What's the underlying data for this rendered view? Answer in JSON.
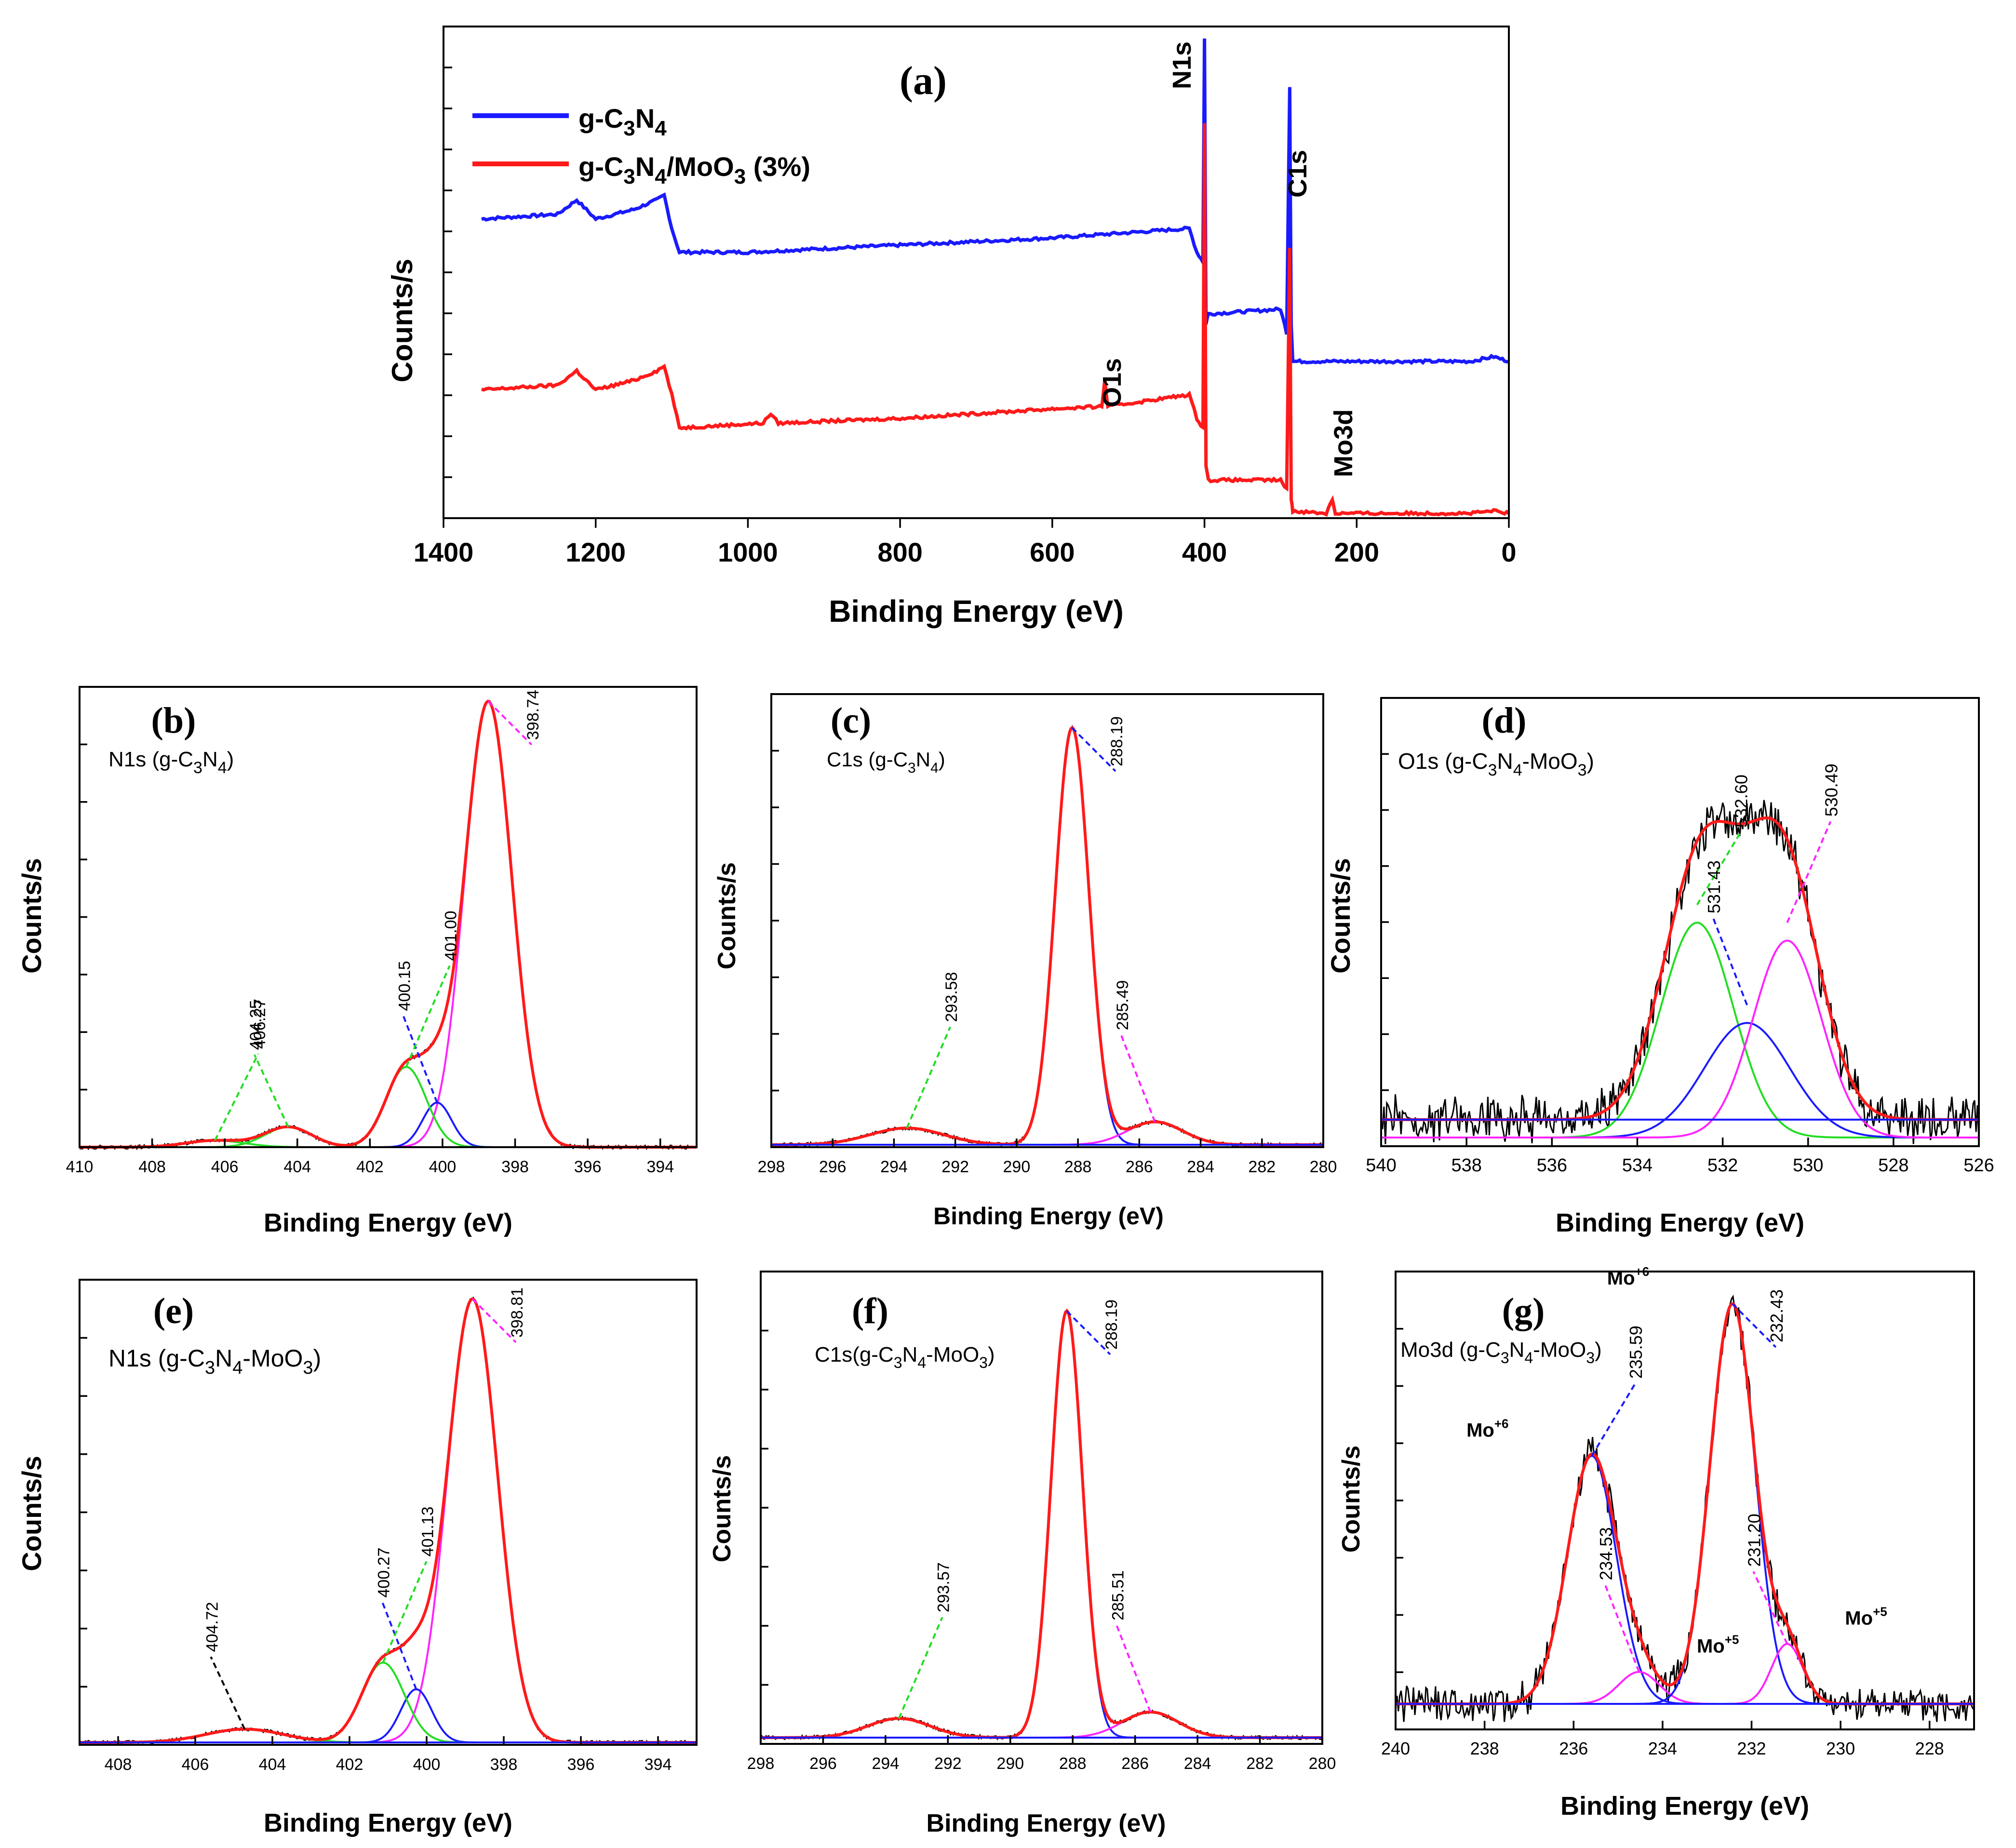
{
  "figure_description_panels": [
    "a",
    "b",
    "c",
    "d",
    "e",
    "f",
    "g"
  ],
  "colors": {
    "blue": "#1a1aff",
    "red": "#ff1a1a",
    "green": "#22dd22",
    "magenta": "#ff22ff",
    "black": "#000000"
  },
  "chart_data": [
    {
      "id": "a",
      "type": "line",
      "panel_label": "(a)",
      "xlabel": "Binding Energy (eV)",
      "ylabel": "Counts/s",
      "xlim": [
        1400,
        0
      ],
      "x_ticks": [
        1400,
        1200,
        1000,
        800,
        600,
        400,
        200,
        0
      ],
      "legend": [
        "g-C3N4",
        "g-C3N4/MoO3 (3%)"
      ],
      "series": [
        {
          "name": "g-C3N4",
          "color": "blue",
          "points": [
            [
              1350,
              0.62
            ],
            [
              1250,
              0.63
            ],
            [
              1225,
              0.66
            ],
            [
              1200,
              0.62
            ],
            [
              1150,
              0.64
            ],
            [
              1120,
              0.66
            ],
            [
              1110,
              0.67
            ],
            [
              1100,
              0.6
            ],
            [
              1090,
              0.55
            ],
            [
              1000,
              0.55
            ],
            [
              800,
              0.565
            ],
            [
              600,
              0.58
            ],
            [
              420,
              0.6
            ],
            [
              410,
              0.55
            ],
            [
              402,
              0.53
            ],
            [
              400,
              1.0
            ],
            [
              398,
              0.4
            ],
            [
              395,
              0.42
            ],
            [
              300,
              0.43
            ],
            [
              292,
              0.38
            ],
            [
              288,
              0.9
            ],
            [
              286,
              0.4
            ],
            [
              284,
              0.32
            ],
            [
              200,
              0.32
            ],
            [
              50,
              0.32
            ],
            [
              20,
              0.33
            ],
            [
              0,
              0.32
            ]
          ]
        },
        {
          "name": "g-C3N4/MoO3 (3%)",
          "color": "red",
          "points": [
            [
              1350,
              0.26
            ],
            [
              1250,
              0.27
            ],
            [
              1225,
              0.3
            ],
            [
              1200,
              0.26
            ],
            [
              1150,
              0.28
            ],
            [
              1120,
              0.3
            ],
            [
              1110,
              0.31
            ],
            [
              1100,
              0.25
            ],
            [
              1090,
              0.18
            ],
            [
              980,
              0.19
            ],
            [
              970,
              0.21
            ],
            [
              960,
              0.19
            ],
            [
              800,
              0.2
            ],
            [
              600,
              0.22
            ],
            [
              535,
              0.225
            ],
            [
              531,
              0.28
            ],
            [
              527,
              0.225
            ],
            [
              420,
              0.25
            ],
            [
              410,
              0.2
            ],
            [
              402,
              0.18
            ],
            [
              400,
              0.82
            ],
            [
              398,
              0.1
            ],
            [
              395,
              0.07
            ],
            [
              300,
              0.07
            ],
            [
              292,
              0.05
            ],
            [
              288,
              0.56
            ],
            [
              286,
              0.03
            ],
            [
              284,
              0.005
            ],
            [
              240,
              0.0
            ],
            [
              232,
              0.03
            ],
            [
              228,
              0.0
            ],
            [
              50,
              0.0
            ],
            [
              20,
              0.005
            ],
            [
              0,
              0.0
            ]
          ]
        }
      ],
      "annotations": [
        "N1s",
        "C1s",
        "O1s",
        "Mo3d"
      ]
    },
    {
      "id": "b",
      "type": "line",
      "panel_label": "(b)",
      "title": "N1s (g-C3N4)",
      "xlabel": "Binding Energy (eV)",
      "ylabel": "Counts/s",
      "xlim": [
        410,
        393
      ],
      "x_ticks": [
        410,
        408,
        406,
        404,
        402,
        400,
        398,
        396,
        394
      ],
      "peaks": [
        {
          "center": 398.74,
          "height": 1.0,
          "width": 0.65,
          "color": "magenta",
          "label": "398.74"
        },
        {
          "center": 400.15,
          "height": 0.1,
          "width": 0.4,
          "color": "blue",
          "label": "400.15"
        },
        {
          "center": 401.0,
          "height": 0.18,
          "width": 0.55,
          "color": "green",
          "label": "401.00"
        },
        {
          "center": 404.25,
          "height": 0.045,
          "width": 0.65,
          "color": "green",
          "label": "404.25"
        },
        {
          "center": 406.27,
          "height": 0.015,
          "width": 0.8,
          "color": "green",
          "label": "406.27"
        }
      ]
    },
    {
      "id": "c",
      "type": "line",
      "panel_label": "(c)",
      "title": "C1s (g-C3N4)",
      "xlabel": "Binding Energy (eV)",
      "ylabel": "Counts/s",
      "xlim": [
        298,
        280
      ],
      "x_ticks": [
        298,
        296,
        294,
        292,
        290,
        288,
        286,
        284,
        282,
        280
      ],
      "peaks": [
        {
          "center": 288.19,
          "height": 1.0,
          "width": 0.55,
          "color": "blue",
          "label": "288.19"
        },
        {
          "center": 285.49,
          "height": 0.055,
          "width": 0.9,
          "color": "magenta",
          "label": "285.49"
        },
        {
          "center": 293.58,
          "height": 0.04,
          "width": 1.2,
          "color": "green",
          "label": "293.58"
        }
      ]
    },
    {
      "id": "d",
      "type": "line",
      "panel_label": "(d)",
      "title": "O1s (g-C3N4-MoO3)",
      "xlabel": "Binding Energy (eV)",
      "ylabel": "Counts/s",
      "xlim": [
        540,
        526
      ],
      "x_ticks": [
        540,
        538,
        536,
        534,
        532,
        530,
        528,
        526
      ],
      "peaks": [
        {
          "center": 532.6,
          "height": 0.6,
          "width": 0.85,
          "color": "green",
          "label": "532.60"
        },
        {
          "center": 531.43,
          "height": 0.32,
          "width": 1.0,
          "color": "blue",
          "label": "531.43"
        },
        {
          "center": 530.49,
          "height": 0.55,
          "width": 0.8,
          "color": "magenta",
          "label": "530.49"
        }
      ]
    },
    {
      "id": "e",
      "type": "line",
      "panel_label": "(e)",
      "title": "N1s (g-C3N4-MoO3)",
      "xlabel": "Binding Energy (eV)",
      "ylabel": "Counts/s",
      "xlim": [
        409,
        393
      ],
      "x_ticks": [
        408,
        406,
        404,
        402,
        400,
        398,
        396,
        394
      ],
      "peaks": [
        {
          "center": 398.81,
          "height": 1.0,
          "width": 0.65,
          "color": "magenta",
          "label": "398.81"
        },
        {
          "center": 400.27,
          "height": 0.12,
          "width": 0.4,
          "color": "blue",
          "label": "400.27"
        },
        {
          "center": 401.13,
          "height": 0.18,
          "width": 0.55,
          "color": "green",
          "label": "401.13"
        },
        {
          "center": 404.72,
          "height": 0.03,
          "width": 1.0,
          "color": "black",
          "label": "404.72"
        }
      ]
    },
    {
      "id": "f",
      "type": "line",
      "panel_label": "(f)",
      "title": "C1s(g-C3N4-MoO3)",
      "xlabel": "Binding Energy (eV)",
      "ylabel": "Counts/s",
      "xlim": [
        298,
        280
      ],
      "x_ticks": [
        298,
        296,
        294,
        292,
        290,
        288,
        286,
        284,
        282,
        280
      ],
      "peaks": [
        {
          "center": 288.19,
          "height": 1.0,
          "width": 0.5,
          "color": "blue",
          "label": "288.19"
        },
        {
          "center": 285.51,
          "height": 0.06,
          "width": 0.9,
          "color": "magenta",
          "label": "285.51"
        },
        {
          "center": 293.57,
          "height": 0.045,
          "width": 1.0,
          "color": "green",
          "label": "293.57"
        }
      ]
    },
    {
      "id": "g",
      "type": "line",
      "panel_label": "(g)",
      "title": "Mo3d (g-C3N4-MoO3)",
      "xlabel": "Binding Energy (eV)",
      "ylabel": "Counts/s",
      "xlim": [
        240,
        227
      ],
      "x_ticks": [
        240,
        238,
        236,
        234,
        232,
        230,
        228
      ],
      "peaks": [
        {
          "center": 235.59,
          "height": 0.62,
          "width": 0.55,
          "color": "blue",
          "label": "235.59"
        },
        {
          "center": 234.53,
          "height": 0.08,
          "width": 0.45,
          "color": "magenta",
          "label": "234.53"
        },
        {
          "center": 232.43,
          "height": 1.0,
          "width": 0.5,
          "color": "blue",
          "label": "232.43"
        },
        {
          "center": 231.2,
          "height": 0.15,
          "width": 0.35,
          "color": "magenta",
          "label": "231.20"
        }
      ],
      "state_labels": [
        "Mo+6",
        "Mo+5",
        "Mo+6",
        "Mo+5"
      ]
    }
  ]
}
